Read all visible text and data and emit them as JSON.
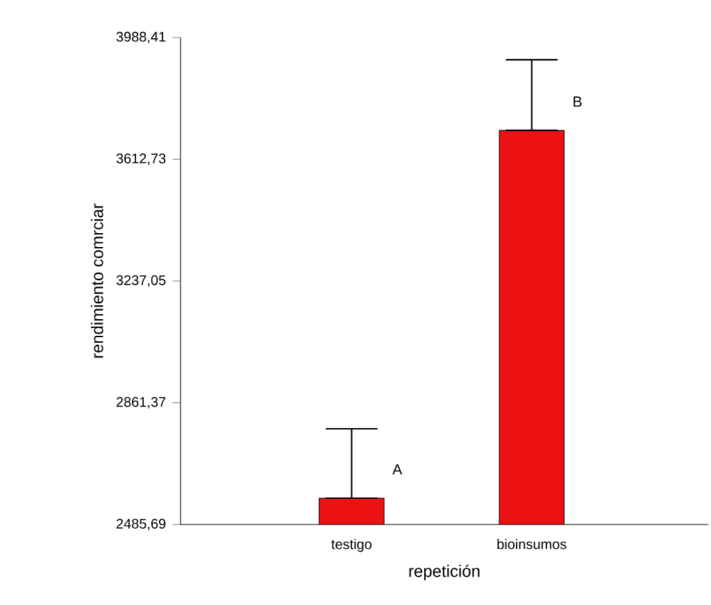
{
  "chart_data": {
    "type": "bar",
    "xlabel": "repetición",
    "ylabel": "rendimiento comrciar",
    "categories": [
      "testigo",
      "bioinsumos"
    ],
    "values": [
      2567,
      3702
    ],
    "color": "#ee1111",
    "errors": [
      [
        2567,
        2781
      ],
      [
        3702,
        3920
      ]
    ],
    "ylim": [
      2485.69,
      3988.41
    ],
    "yticks": [
      {
        "value": 2485.69,
        "label": "2485,69"
      },
      {
        "value": 2861.37,
        "label": "2861,37"
      },
      {
        "value": 3237.05,
        "label": "3237,05"
      },
      {
        "value": 3612.73,
        "label": "3612,73"
      },
      {
        "value": 3988.41,
        "label": "3988,41"
      }
    ],
    "annotations": [
      {
        "text": "A",
        "x": "testigo",
        "y": 2620
      },
      {
        "text": "B",
        "x": "bioinsumos",
        "y": 3755
      }
    ],
    "grid": false
  }
}
